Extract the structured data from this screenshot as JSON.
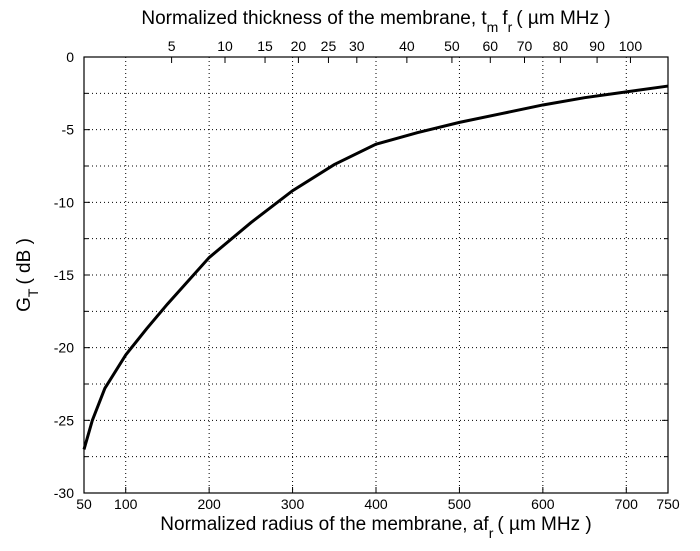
{
  "chart_data": {
    "type": "line",
    "xlabel": [
      "Normalized radius of the membrane, af",
      "r",
      "( µm MHz )"
    ],
    "ylabel": [
      "G",
      "T",
      "( dB )"
    ],
    "x2label": [
      "Normalized thickness of the membrane, t",
      "m",
      "f",
      "r",
      "( µm MHz )"
    ],
    "x": [
      50,
      60,
      75,
      100,
      125,
      150,
      200,
      250,
      300,
      350,
      400,
      450,
      500,
      550,
      600,
      650,
      700,
      750
    ],
    "series": [
      {
        "color": "#000000",
        "values": [
          -27,
          -25,
          -22.8,
          -20.5,
          -18.7,
          -17,
          -13.8,
          -11.4,
          -9.2,
          -7.4,
          -6.0,
          -5.2,
          -4.5,
          -3.9,
          -3.3,
          -2.8,
          -2.4,
          -2.0
        ]
      }
    ],
    "xlim": [
      50,
      750
    ],
    "ylim": [
      -30,
      0
    ],
    "xticks": [
      50,
      100,
      200,
      300,
      400,
      500,
      600,
      700,
      750
    ],
    "yticks": [
      -30,
      -25,
      -20,
      -15,
      -10,
      -5,
      0
    ],
    "yminor": [
      -27.5,
      -22.5,
      -17.5,
      -12.5,
      -7.5,
      -2.5
    ],
    "x2ticks": [
      {
        "value": 155,
        "label": "5"
      },
      {
        "value": 219,
        "label": "10"
      },
      {
        "value": 267,
        "label": "15"
      },
      {
        "value": 307,
        "label": "20"
      },
      {
        "value": 343,
        "label": "25"
      },
      {
        "value": 377,
        "label": "30"
      },
      {
        "value": 437,
        "label": "40"
      },
      {
        "value": 491,
        "label": "50"
      },
      {
        "value": 537,
        "label": "60"
      },
      {
        "value": 578,
        "label": "70"
      },
      {
        "value": 621,
        "label": "80"
      },
      {
        "value": 665,
        "label": "90"
      },
      {
        "value": 705,
        "label": "100"
      }
    ],
    "grid": true
  }
}
